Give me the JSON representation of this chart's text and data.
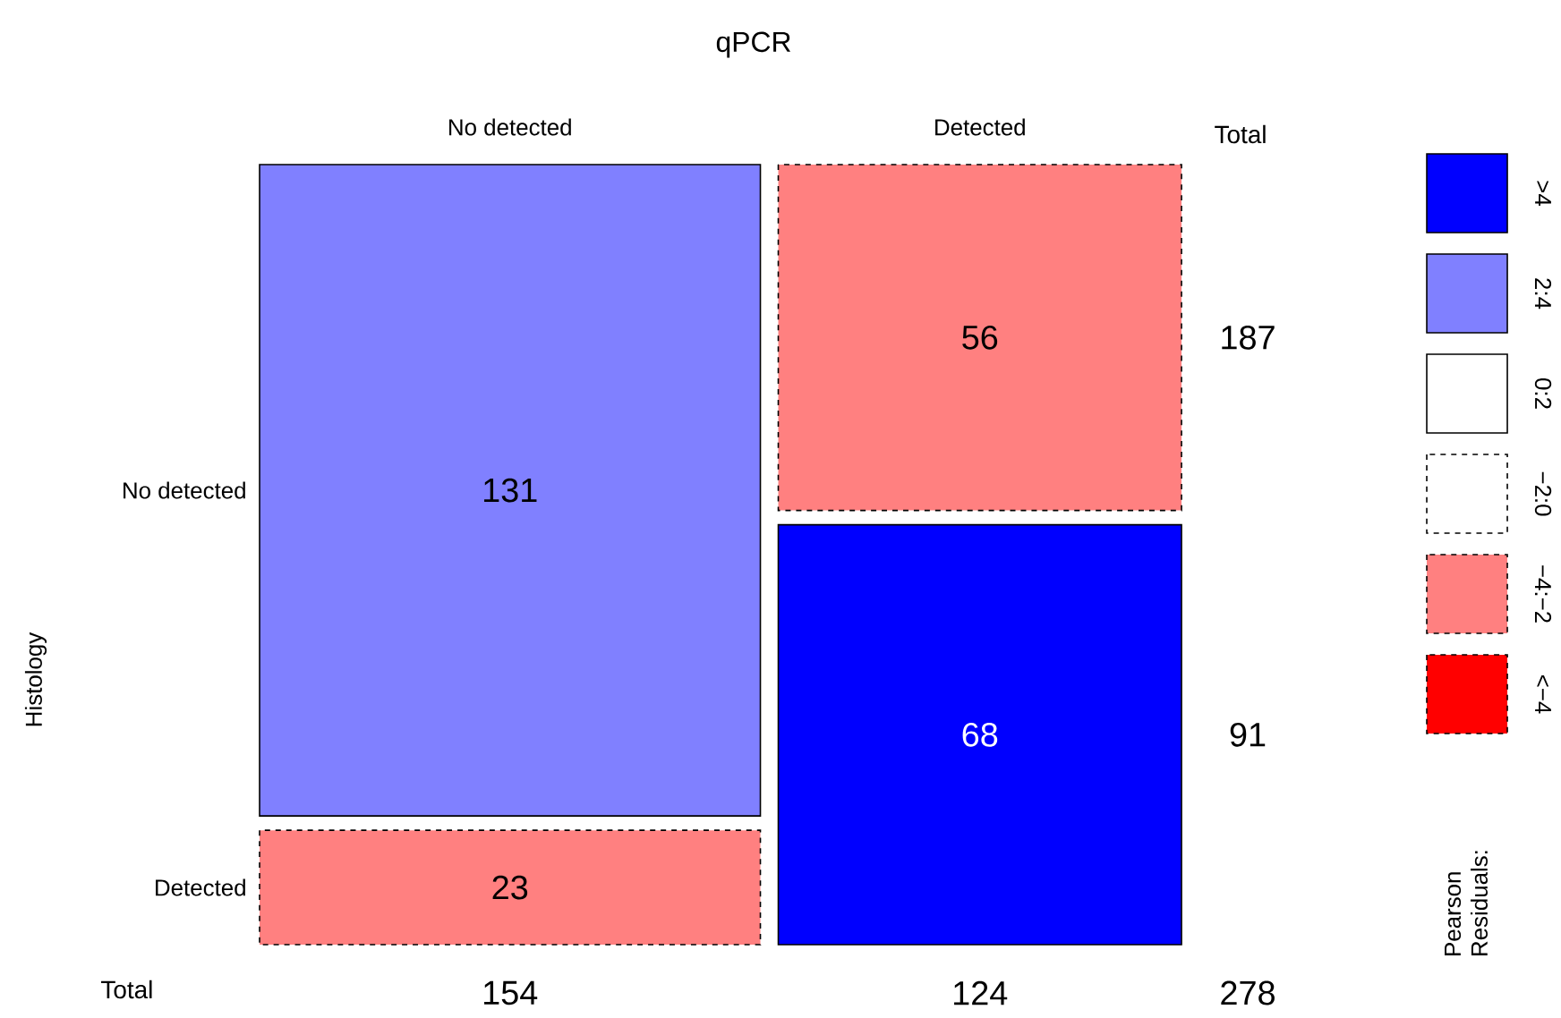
{
  "chart_data": {
    "type": "heatmap",
    "title": "qPCR",
    "ylabel": "Histology",
    "categories": [
      "No detected",
      "Detected"
    ],
    "y_categories": [
      "No detected",
      "Detected"
    ],
    "cells": [
      [
        131,
        56
      ],
      [
        23,
        68
      ]
    ],
    "colors": [
      [
        "#8080ff",
        "#ff8080"
      ],
      [
        "#ff8080",
        "#0000ff"
      ]
    ],
    "data_labels": true,
    "legend_title": "Pearson Residuals:",
    "annotations": [
      "Total",
      "Total",
      "187",
      "91",
      "154",
      "124",
      "278",
      ">4",
      "2:4",
      "0:2",
      "−2:0",
      "−4:−2",
      "<−4"
    ]
  }
}
